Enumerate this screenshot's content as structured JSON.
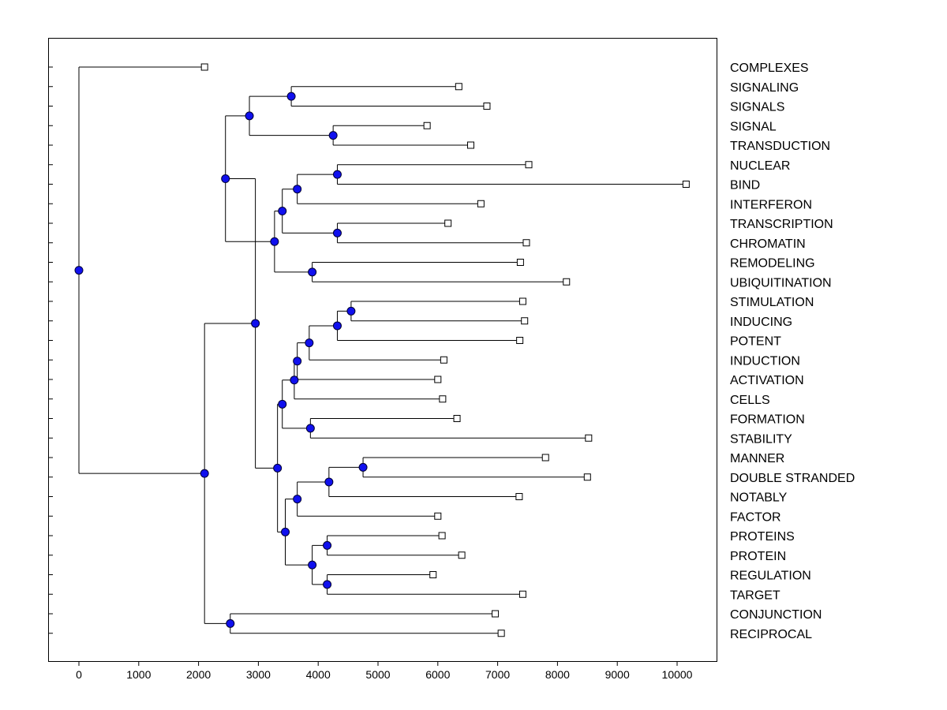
{
  "chart_data": {
    "type": "dendrogram",
    "title": "",
    "xlabel": "",
    "ylabel": "",
    "xlim": [
      -500,
      10700
    ],
    "xticks": [
      0,
      1000,
      2000,
      3000,
      4000,
      5000,
      6000,
      7000,
      8000,
      9000,
      10000
    ],
    "xtick_labels": [
      "0",
      "1000",
      "2000",
      "3000",
      "4000",
      "5000",
      "6000",
      "7000",
      "8000",
      "9000",
      "10000"
    ],
    "leaves": [
      {
        "label": "COMPLEXES",
        "value": 2100
      },
      {
        "label": "SIGNALING",
        "value": 6350
      },
      {
        "label": "SIGNALS",
        "value": 6820
      },
      {
        "label": "SIGNAL",
        "value": 5820
      },
      {
        "label": "TRANSDUCTION",
        "value": 6550
      },
      {
        "label": "NUCLEAR",
        "value": 7520
      },
      {
        "label": "BIND",
        "value": 10150
      },
      {
        "label": "INTERFERON",
        "value": 6720
      },
      {
        "label": "TRANSCRIPTION",
        "value": 6170
      },
      {
        "label": "CHROMATIN",
        "value": 7480
      },
      {
        "label": "REMODELING",
        "value": 7380
      },
      {
        "label": "UBIQUITINATION",
        "value": 8150
      },
      {
        "label": "STIMULATION",
        "value": 7420
      },
      {
        "label": "INDUCING",
        "value": 7450
      },
      {
        "label": "POTENT",
        "value": 7370
      },
      {
        "label": "INDUCTION",
        "value": 6100
      },
      {
        "label": "ACTIVATION",
        "value": 6000
      },
      {
        "label": "CELLS",
        "value": 6080
      },
      {
        "label": "FORMATION",
        "value": 6320
      },
      {
        "label": "STABILITY",
        "value": 8520
      },
      {
        "label": "MANNER",
        "value": 7800
      },
      {
        "label": "DOUBLE STRANDED",
        "value": 8500
      },
      {
        "label": "NOTABLY",
        "value": 7360
      },
      {
        "label": "FACTOR",
        "value": 6000
      },
      {
        "label": "PROTEINS",
        "value": 6070
      },
      {
        "label": "PROTEIN",
        "value": 6400
      },
      {
        "label": "REGULATION",
        "value": 5920
      },
      {
        "label": "TARGET",
        "value": 7420
      },
      {
        "label": "CONJUNCTION",
        "value": 6960
      },
      {
        "label": "RECIPROCAL",
        "value": 7060
      }
    ],
    "merges": [
      {
        "id": "n1",
        "value": 3550,
        "children": [
          "L1",
          "L2"
        ]
      },
      {
        "id": "n2",
        "value": 4250,
        "children": [
          "L3",
          "L4"
        ]
      },
      {
        "id": "n3",
        "value": 2850,
        "children": [
          "n1",
          "n2"
        ]
      },
      {
        "id": "n4",
        "value": 4320,
        "children": [
          "L5",
          "L6"
        ]
      },
      {
        "id": "n5",
        "value": 3650,
        "children": [
          "n4",
          "L7"
        ]
      },
      {
        "id": "n6",
        "value": 4320,
        "children": [
          "L8",
          "L9"
        ]
      },
      {
        "id": "n7",
        "value": 3400,
        "children": [
          "n5",
          "n6"
        ]
      },
      {
        "id": "n8",
        "value": 3900,
        "children": [
          "L10",
          "L11"
        ]
      },
      {
        "id": "n9",
        "value": 3270,
        "children": [
          "n7",
          "n8"
        ]
      },
      {
        "id": "n10",
        "value": 2450,
        "children": [
          "n3",
          "n9"
        ]
      },
      {
        "id": "n11",
        "value": 4550,
        "children": [
          "L12",
          "L13"
        ]
      },
      {
        "id": "n12",
        "value": 4320,
        "children": [
          "n11",
          "L14"
        ]
      },
      {
        "id": "n13",
        "value": 3850,
        "children": [
          "n12",
          "L15"
        ]
      },
      {
        "id": "n14",
        "value": 3650,
        "children": [
          "n13",
          "L16"
        ]
      },
      {
        "id": "n15",
        "value": 3600,
        "children": [
          "n14",
          "L17"
        ]
      },
      {
        "id": "n16",
        "value": 3870,
        "children": [
          "L18",
          "L19"
        ]
      },
      {
        "id": "n17",
        "value": 3400,
        "children": [
          "n15",
          "n16"
        ]
      },
      {
        "id": "n18",
        "value": 4750,
        "children": [
          "L20",
          "L21"
        ]
      },
      {
        "id": "n19",
        "value": 4180,
        "children": [
          "n18",
          "L22"
        ]
      },
      {
        "id": "n20",
        "value": 3650,
        "children": [
          "n19",
          "L23"
        ]
      },
      {
        "id": "n21",
        "value": 4150,
        "children": [
          "L24",
          "L25"
        ]
      },
      {
        "id": "n22",
        "value": 4150,
        "children": [
          "L26",
          "L27"
        ]
      },
      {
        "id": "n23",
        "value": 3900,
        "children": [
          "n21",
          "n22"
        ]
      },
      {
        "id": "n24",
        "value": 3450,
        "children": [
          "n20",
          "n23"
        ]
      },
      {
        "id": "n25",
        "value": 3320,
        "children": [
          "n17",
          "n24"
        ]
      },
      {
        "id": "n26",
        "value": 2950,
        "children": [
          "n10",
          "n25"
        ]
      },
      {
        "id": "n27",
        "value": 2530,
        "children": [
          "L28",
          "L29"
        ]
      },
      {
        "id": "n28",
        "value": 2100,
        "children": [
          "n26",
          "n27"
        ]
      },
      {
        "id": "n29",
        "value": 0,
        "children": [
          "L0",
          "n28"
        ]
      }
    ]
  }
}
